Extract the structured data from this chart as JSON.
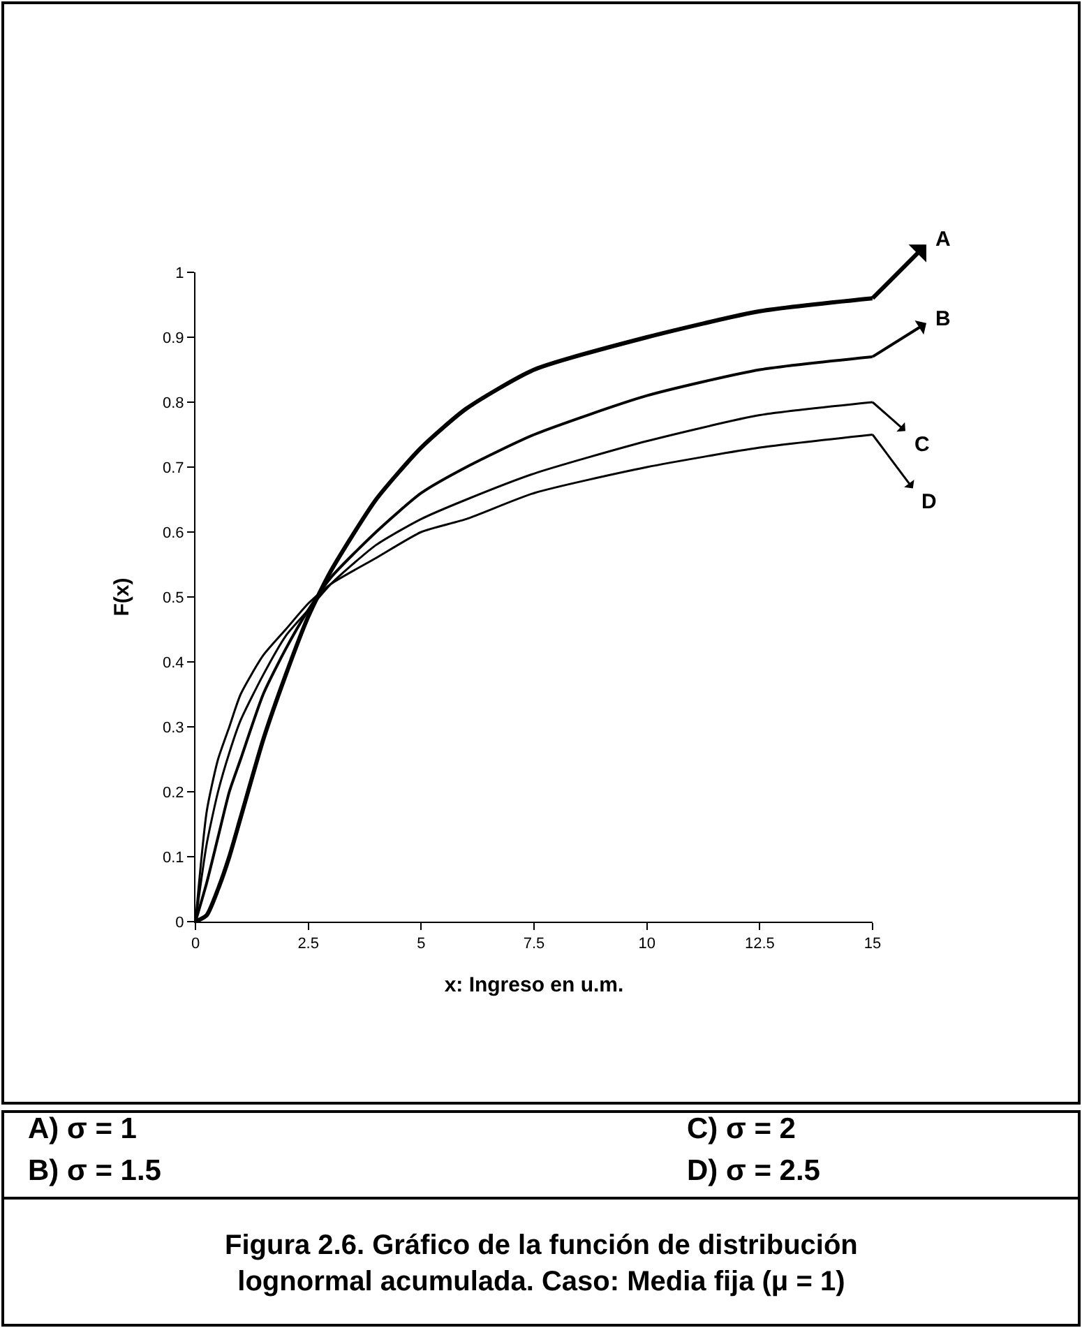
{
  "chart_data": {
    "type": "line",
    "xlabel": "x: Ingreso en u.m.",
    "ylabel": "F(x)",
    "x": [
      0,
      0.25,
      0.5,
      0.75,
      1,
      1.5,
      2,
      2.5,
      3,
      4,
      5,
      6,
      7.5,
      10,
      12.5,
      15
    ],
    "series": [
      {
        "name": "A",
        "color": "#000000",
        "values": [
          0,
          0.01,
          0.05,
          0.1,
          0.16,
          0.28,
          0.38,
          0.47,
          0.54,
          0.65,
          0.73,
          0.79,
          0.85,
          0.9,
          0.94,
          0.96
        ]
      },
      {
        "name": "B",
        "color": "#000000",
        "values": [
          0,
          0.06,
          0.13,
          0.2,
          0.25,
          0.35,
          0.42,
          0.48,
          0.53,
          0.6,
          0.66,
          0.7,
          0.75,
          0.81,
          0.85,
          0.87
        ]
      },
      {
        "name": "C",
        "color": "#000000",
        "values": [
          0,
          0.12,
          0.2,
          0.26,
          0.31,
          0.38,
          0.44,
          0.48,
          0.52,
          0.58,
          0.62,
          0.65,
          0.69,
          0.74,
          0.78,
          0.8
        ]
      },
      {
        "name": "D",
        "color": "#000000",
        "values": [
          0,
          0.17,
          0.25,
          0.3,
          0.35,
          0.41,
          0.45,
          0.49,
          0.52,
          0.56,
          0.6,
          0.62,
          0.66,
          0.7,
          0.73,
          0.75
        ]
      }
    ],
    "xlim": [
      0,
      15
    ],
    "xticks": [
      0,
      2.5,
      5,
      7.5,
      10,
      12.5,
      15
    ],
    "ylim": [
      0,
      1
    ],
    "yticks": [
      0,
      0.1,
      0.2,
      0.3,
      0.4,
      0.5,
      0.6,
      0.7,
      0.8,
      0.9,
      1
    ],
    "grid": false,
    "legend": "right",
    "marker": "none",
    "line_style": "solid",
    "annotations": [
      "A) σ = 1",
      "B) σ = 1.5",
      "C) σ = 2",
      "D) σ = 2.5",
      "Figura 2.6. Gráfico de la función de distribución lognormal acumulada. Caso: Media fija (μ = 1)"
    ]
  }
}
